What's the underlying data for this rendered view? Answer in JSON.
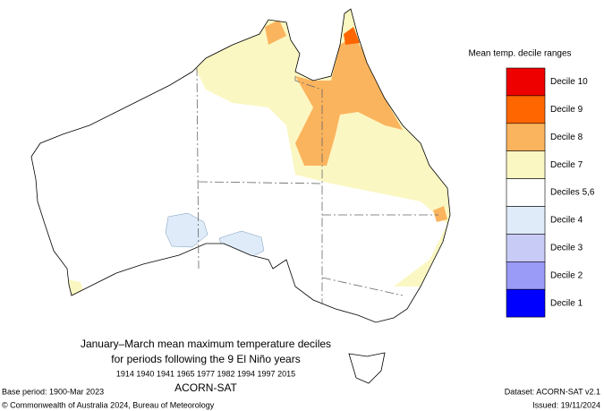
{
  "legend": {
    "title": "Mean temp. decile ranges",
    "items": [
      {
        "label": "Decile 10",
        "color": "#ee0000"
      },
      {
        "label": "Decile 9",
        "color": "#ff6600"
      },
      {
        "label": "Decile 8",
        "color": "#fbb45e"
      },
      {
        "label": "Decile 7",
        "color": "#fbf7c3"
      },
      {
        "label": "Deciles 5,6",
        "color": "#ffffff"
      },
      {
        "label": "Decile 4",
        "color": "#dfebf8"
      },
      {
        "label": "Decile 3",
        "color": "#c8cbf5"
      },
      {
        "label": "Decile 2",
        "color": "#9a9af7"
      },
      {
        "label": "Decile 1",
        "color": "#0000ff"
      }
    ]
  },
  "caption": {
    "line1": "January–March mean maximum temperature deciles",
    "line2": "for periods following the 9 El Niño years",
    "years": "1914 1940 1941 1965 1977 1982 1994 1997 2015",
    "dataset": "ACORN-SAT"
  },
  "footer": {
    "base_period": "Base period: 1900-Mar 2023",
    "copyright": "© Commonwealth of Australia 2024, Bureau of Meteorology",
    "dataset": "Dataset: ACORN-SAT v2.1",
    "issued": "Issued: 19/11/2024"
  }
}
